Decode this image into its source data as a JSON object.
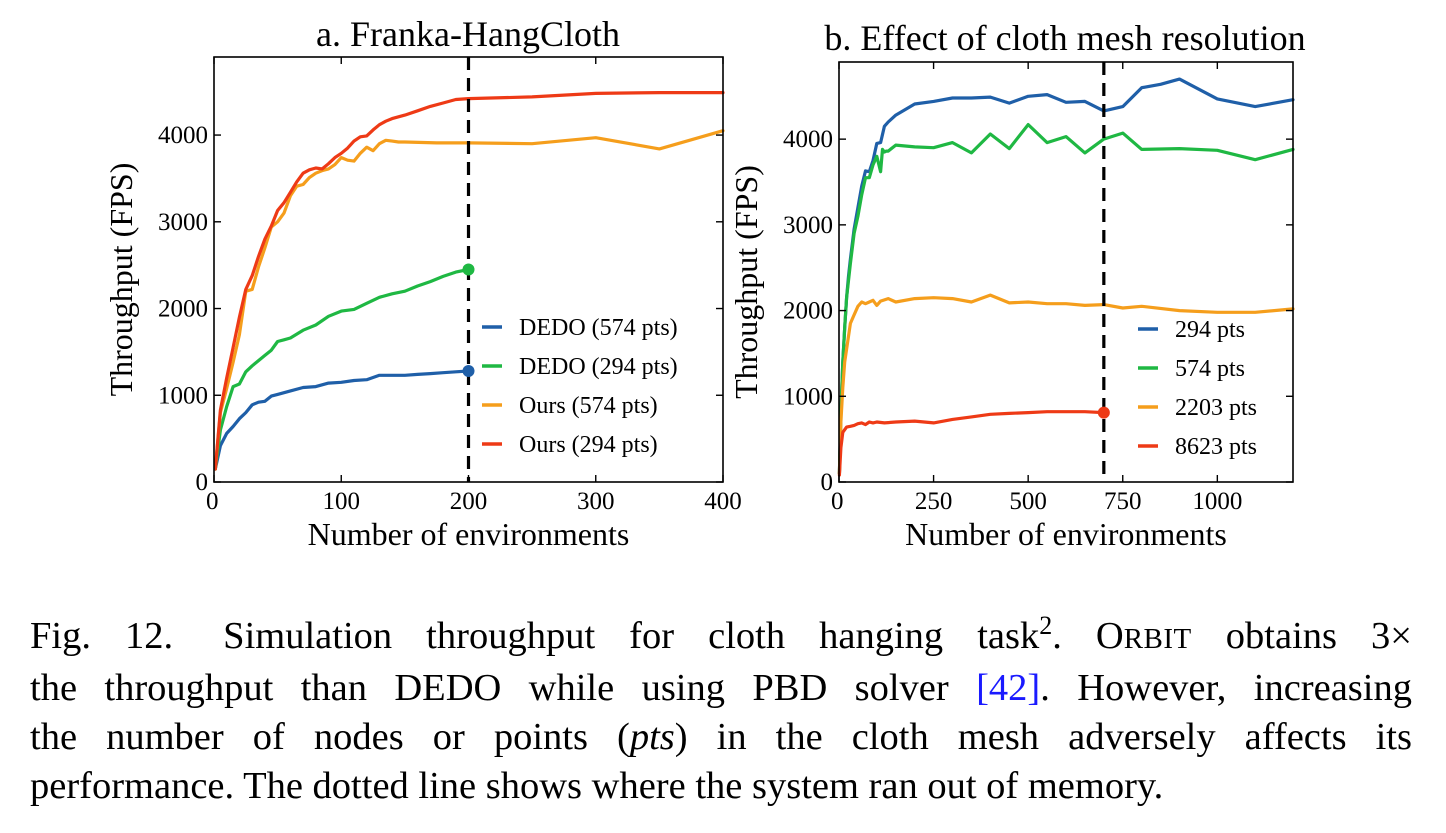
{
  "chart_data": [
    {
      "id": "a",
      "type": "line",
      "title": "a. Franka-HangCloth",
      "xlabel": "Number of environments",
      "ylabel": "Throughput (FPS)",
      "xlim": [
        0,
        400
      ],
      "ylim": [
        0,
        4900
      ],
      "xticks": [
        0,
        100,
        200,
        300,
        400
      ],
      "yticks": [
        0,
        1000,
        2000,
        3000,
        4000
      ],
      "grid": false,
      "legend_position": "lower-right",
      "oom_line_x": 200,
      "series": [
        {
          "name": "DEDO (574 pts)",
          "color": "#1f5fa8",
          "end_marker": true,
          "x": [
            1,
            5,
            10,
            15,
            20,
            25,
            30,
            35,
            40,
            45,
            50,
            60,
            70,
            80,
            90,
            100,
            110,
            120,
            130,
            140,
            150,
            160,
            170,
            180,
            190,
            200
          ],
          "y": [
            150,
            420,
            560,
            640,
            730,
            800,
            890,
            920,
            930,
            990,
            1010,
            1050,
            1090,
            1100,
            1140,
            1150,
            1170,
            1180,
            1230,
            1230,
            1230,
            1240,
            1250,
            1260,
            1270,
            1280
          ]
        },
        {
          "name": "DEDO (294 pts)",
          "color": "#1fb843",
          "end_marker": true,
          "x": [
            1,
            5,
            10,
            15,
            20,
            25,
            30,
            35,
            40,
            45,
            50,
            55,
            60,
            70,
            80,
            90,
            100,
            110,
            120,
            130,
            140,
            150,
            160,
            170,
            180,
            190,
            200
          ],
          "y": [
            150,
            600,
            870,
            1100,
            1130,
            1270,
            1340,
            1400,
            1460,
            1520,
            1620,
            1640,
            1660,
            1750,
            1810,
            1910,
            1970,
            1990,
            2060,
            2130,
            2170,
            2200,
            2260,
            2310,
            2370,
            2420,
            2450
          ]
        },
        {
          "name": "Ours (574 pts)",
          "color": "#f59e1c",
          "end_marker": false,
          "x": [
            1,
            5,
            10,
            15,
            20,
            25,
            30,
            35,
            40,
            45,
            50,
            55,
            60,
            65,
            70,
            75,
            80,
            85,
            90,
            95,
            100,
            105,
            110,
            115,
            120,
            125,
            130,
            135,
            140,
            145,
            150,
            175,
            200,
            250,
            300,
            350,
            400
          ],
          "y": [
            150,
            800,
            1080,
            1380,
            1700,
            2200,
            2220,
            2480,
            2700,
            2940,
            3000,
            3100,
            3300,
            3410,
            3430,
            3510,
            3560,
            3590,
            3610,
            3660,
            3740,
            3710,
            3700,
            3790,
            3860,
            3820,
            3900,
            3940,
            3930,
            3920,
            3920,
            3910,
            3910,
            3900,
            3970,
            3840,
            4050
          ]
        },
        {
          "name": "Ours (294 pts)",
          "color": "#ee3a16",
          "end_marker": false,
          "x": [
            1,
            5,
            10,
            15,
            20,
            25,
            30,
            35,
            40,
            45,
            50,
            55,
            60,
            65,
            70,
            75,
            80,
            85,
            90,
            95,
            100,
            105,
            110,
            115,
            120,
            125,
            130,
            135,
            140,
            150,
            160,
            170,
            180,
            190,
            200,
            250,
            300,
            350,
            400
          ],
          "y": [
            150,
            830,
            1200,
            1550,
            1900,
            2220,
            2380,
            2600,
            2800,
            2950,
            3130,
            3220,
            3340,
            3460,
            3560,
            3600,
            3620,
            3610,
            3670,
            3740,
            3790,
            3850,
            3930,
            3980,
            3990,
            4060,
            4120,
            4160,
            4190,
            4230,
            4280,
            4330,
            4370,
            4410,
            4420,
            4440,
            4480,
            4490,
            4490
          ]
        }
      ]
    },
    {
      "id": "b",
      "type": "line",
      "title": "b. Effect of cloth mesh resolution",
      "xlabel": "Number of environments",
      "ylabel": "Throughput (FPS)",
      "xlim": [
        0,
        1200
      ],
      "ylim": [
        0,
        4900
      ],
      "xticks": [
        0,
        250,
        500,
        750,
        1000
      ],
      "yticks": [
        0,
        1000,
        2000,
        3000,
        4000
      ],
      "grid": false,
      "legend_position": "lower-right",
      "oom_line_x": 700,
      "series": [
        {
          "name": "294 pts",
          "color": "#1f5fa8",
          "end_marker": false,
          "x": [
            1,
            5,
            10,
            15,
            20,
            25,
            30,
            40,
            50,
            60,
            70,
            80,
            90,
            100,
            110,
            120,
            130,
            150,
            200,
            250,
            300,
            350,
            400,
            450,
            500,
            550,
            600,
            650,
            700,
            750,
            800,
            850,
            900,
            1000,
            1100,
            1200
          ],
          "y": [
            100,
            800,
            1400,
            1800,
            2150,
            2400,
            2600,
            2950,
            3200,
            3450,
            3630,
            3620,
            3750,
            3950,
            3960,
            4150,
            4200,
            4280,
            4410,
            4440,
            4480,
            4480,
            4490,
            4420,
            4500,
            4520,
            4430,
            4440,
            4330,
            4380,
            4600,
            4640,
            4700,
            4470,
            4380,
            4460
          ]
        },
        {
          "name": "574 pts",
          "color": "#1fb843",
          "end_marker": false,
          "x": [
            1,
            5,
            10,
            15,
            20,
            25,
            30,
            40,
            50,
            60,
            70,
            80,
            90,
            100,
            110,
            115,
            120,
            125,
            130,
            150,
            200,
            250,
            300,
            350,
            400,
            450,
            500,
            550,
            600,
            650,
            700,
            750,
            800,
            900,
            1000,
            1100,
            1200
          ],
          "y": [
            100,
            800,
            1400,
            1800,
            2150,
            2350,
            2550,
            2900,
            3100,
            3350,
            3550,
            3550,
            3700,
            3800,
            3620,
            3880,
            3850,
            3860,
            3860,
            3930,
            3910,
            3900,
            3960,
            3840,
            4060,
            3890,
            4170,
            3960,
            4030,
            3840,
            4000,
            4070,
            3880,
            3890,
            3870,
            3760,
            3880
          ]
        },
        {
          "name": "2203 pts",
          "color": "#f59e1c",
          "end_marker": false,
          "x": [
            1,
            5,
            10,
            15,
            20,
            25,
            30,
            40,
            50,
            60,
            70,
            80,
            90,
            100,
            110,
            130,
            150,
            200,
            250,
            300,
            350,
            400,
            450,
            500,
            550,
            600,
            650,
            700,
            750,
            800,
            900,
            1000,
            1100,
            1200
          ],
          "y": [
            100,
            700,
            1100,
            1400,
            1550,
            1700,
            1850,
            1950,
            2050,
            2100,
            2080,
            2100,
            2120,
            2060,
            2110,
            2140,
            2100,
            2140,
            2150,
            2140,
            2100,
            2180,
            2090,
            2100,
            2080,
            2080,
            2060,
            2070,
            2030,
            2050,
            2000,
            1980,
            1980,
            2020
          ]
        },
        {
          "name": "8623 pts",
          "color": "#ee3a16",
          "end_marker": true,
          "x": [
            1,
            5,
            10,
            20,
            30,
            40,
            50,
            60,
            70,
            80,
            90,
            100,
            120,
            150,
            200,
            250,
            300,
            350,
            400,
            450,
            500,
            550,
            600,
            650,
            700
          ],
          "y": [
            80,
            400,
            580,
            640,
            650,
            660,
            680,
            690,
            670,
            700,
            690,
            700,
            690,
            700,
            710,
            690,
            730,
            760,
            790,
            800,
            810,
            820,
            820,
            820,
            810
          ]
        }
      ]
    }
  ],
  "caption": {
    "label": "Fig. 12.",
    "line1_text": "Simulation throughput for cloth hanging task",
    "footnote_mark": "2",
    "line1_sep": ". ",
    "orbit_first": "O",
    "orbit_rest": "RBIT",
    "line1_end": " obtains 3×",
    "line2_start": "the throughput than DEDO while using PBD solver ",
    "citation": "[42]",
    "line2_end": ". However, increasing",
    "line3_start": "the number of nodes or points (",
    "pts_italic": "pts",
    "line3_end": ") in the cloth mesh adversely affects its",
    "line4": "performance. The dotted line shows where the system ran out of memory."
  }
}
